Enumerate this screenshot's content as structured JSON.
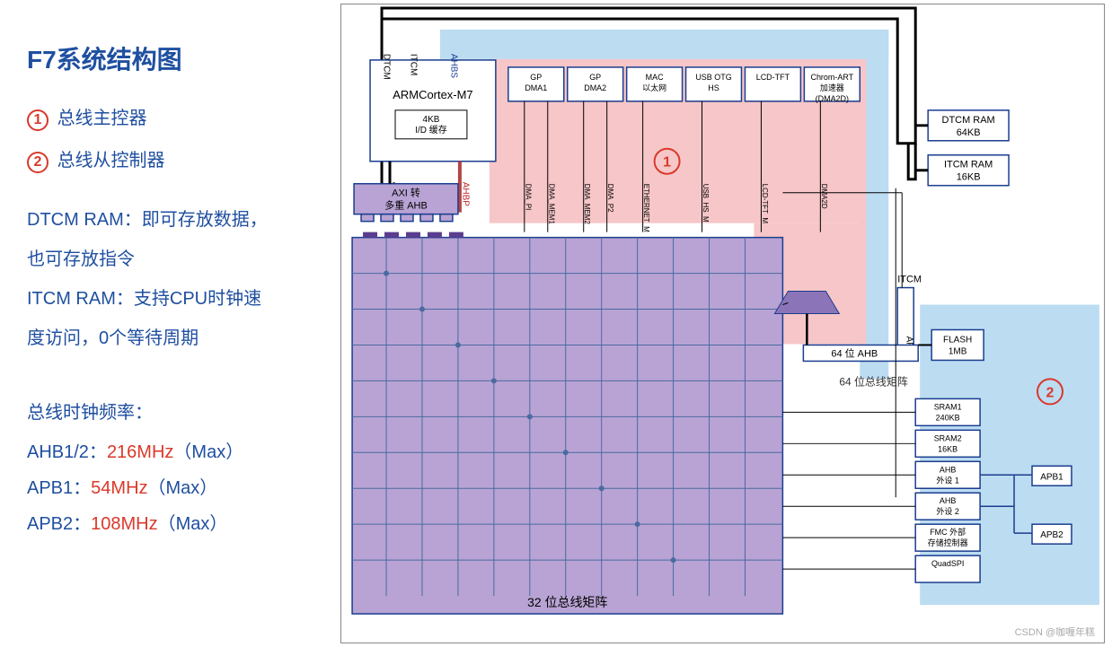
{
  "title": "F7系统结构图",
  "legend": {
    "one": {
      "num": "1",
      "label": "总线主控器"
    },
    "two": {
      "num": "2",
      "label": "总线从控制器"
    }
  },
  "desc": {
    "dtcm_l1": "DTCM RAM：即可存放数据，",
    "dtcm_l2": "也可存放指令",
    "itcm_l1": "ITCM RAM：支持CPU时钟速",
    "itcm_l2": "度访问，0个等待周期"
  },
  "clock": {
    "title": "总线时钟频率：",
    "ahb": {
      "pre": "AHB1/2：",
      "val": "216MHz",
      "post": "（Max）"
    },
    "apb1": {
      "pre": "APB1：",
      "val": "54MHz",
      "post": "（Max）"
    },
    "apb2": {
      "pre": "APB2：",
      "val": "108MHz",
      "post": "（Max）"
    }
  },
  "colors": {
    "master_bg": "#f6c6c8",
    "slave_bg": "#bcdcf2",
    "matrix_bg": "#b8a3d4",
    "axi_bg": "#b8a3d4",
    "box_border": "#1a3d8f",
    "grid": "#4a6aa0",
    "red": "#d9392a",
    "blue": "#1f4fa0"
  },
  "diagram": {
    "cortex": "ARMCortex-M7",
    "cache_l1": "4KB",
    "cache_l2": "I/D 缓存",
    "dtcm_v": "DTCM",
    "itcm_v": "ITCM",
    "ahbs_v": "AHBS",
    "axim_v": "AXIM",
    "ahbp_v": "AHBP",
    "axi_l1": "AXI 转",
    "axi_l2": "多重 AHB",
    "masters": [
      {
        "l1": "GP",
        "l2": "DMA1",
        "sig": [
          "DMA_PI",
          "DMA_MEM1"
        ]
      },
      {
        "l1": "GP",
        "l2": "DMA2",
        "sig": [
          "DMA_MEM2",
          "DMA_P2"
        ]
      },
      {
        "l1": "MAC",
        "l2": "以太网",
        "sig": [
          "ETHERNET_M"
        ]
      },
      {
        "l1": "USB OTG",
        "l2": "HS",
        "sig": [
          "USB_HS_M"
        ]
      },
      {
        "l1": "LCD-TFT",
        "l2": "",
        "sig": [
          "LCD-TFT_M"
        ]
      },
      {
        "l1": "Chrom-ART",
        "l2": "加速器",
        "l3": "(DMA2D)",
        "sig": [
          "DMA2D"
        ]
      }
    ],
    "dtcm_ram_l1": "DTCM RAM",
    "dtcm_ram_l2": "64KB",
    "itcm_ram_l1": "ITCM RAM",
    "itcm_ram_l2": "16KB",
    "itcm_label": "ITCM",
    "art_label": "ART",
    "ahb64": "64 位 AHB",
    "matrix64": "64 位总线矩阵",
    "matrix32": "32 位总线矩阵",
    "flash_l1": "FLASH",
    "flash_l2": "1MB",
    "slaves": [
      {
        "l1": "SRAM1",
        "l2": "240KB"
      },
      {
        "l1": "SRAM2",
        "l2": "16KB"
      },
      {
        "l1": "AHB",
        "l2": "外设 1"
      },
      {
        "l1": "AHB",
        "l2": "外设 2"
      },
      {
        "l1": "FMC 外部",
        "l2": "存储控制器"
      },
      {
        "l1": "QuadSPI",
        "l2": ""
      }
    ],
    "apb1": "APB1",
    "apb2": "APB2"
  },
  "watermark": "CSDN @咖喱年糕"
}
